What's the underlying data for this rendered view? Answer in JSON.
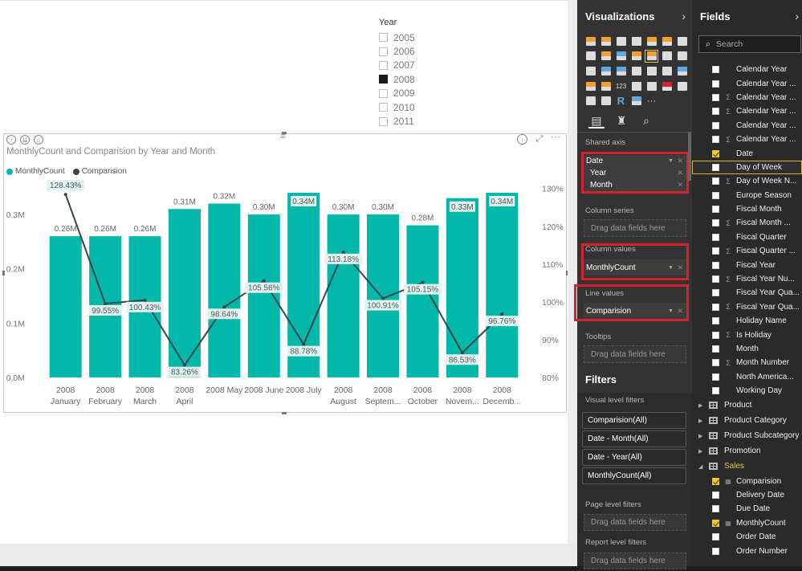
{
  "slicer": {
    "title": "Year",
    "items": [
      {
        "label": "2005",
        "selected": false
      },
      {
        "label": "2006",
        "selected": false
      },
      {
        "label": "2007",
        "selected": false
      },
      {
        "label": "2008",
        "selected": true
      },
      {
        "label": "2009",
        "selected": false
      },
      {
        "label": "2010",
        "selected": false
      },
      {
        "label": "2011",
        "selected": false
      }
    ]
  },
  "visual": {
    "title": "MonthlyCount and Comparision by Year and Month",
    "legend": [
      {
        "label": "MonthlyCount",
        "color": "#01b8aa"
      },
      {
        "label": "Comparision",
        "color": "#374649"
      }
    ]
  },
  "chart_data": {
    "type": "bar",
    "title": "MonthlyCount and Comparision by Year and Month",
    "categories": [
      [
        "2008",
        "January"
      ],
      [
        "2008",
        "February"
      ],
      [
        "2008",
        "March"
      ],
      [
        "2008",
        "April"
      ],
      [
        "2008 May"
      ],
      [
        "2008 June"
      ],
      [
        "2008 July"
      ],
      [
        "2008",
        "August"
      ],
      [
        "2008",
        "Septem..."
      ],
      [
        "2008",
        "October"
      ],
      [
        "2008",
        "Novem..."
      ],
      [
        "2008",
        "Decemb..."
      ]
    ],
    "series": [
      {
        "name": "MonthlyCount",
        "kind": "bar",
        "axis": "left",
        "color": "#01b8aa",
        "values": [
          260000,
          260000,
          260000,
          310000,
          320000,
          300000,
          340000,
          300000,
          300000,
          280000,
          330000,
          340000
        ],
        "labels": [
          "0.26M",
          "0.26M",
          "0.26M",
          "0.31M",
          "0.32M",
          "0.30M",
          "0.34M",
          "0.30M",
          "0.30M",
          "0.28M",
          "0.33M",
          "0.34M"
        ]
      },
      {
        "name": "Comparision",
        "kind": "line",
        "axis": "right",
        "color": "#374649",
        "values": [
          128.43,
          99.55,
          100.43,
          83.26,
          98.64,
          105.56,
          88.78,
          113.18,
          100.91,
          105.15,
          86.53,
          96.76
        ],
        "labels": [
          "128.43%",
          "99.55%",
          "100.43%",
          "83.26%",
          "98.64%",
          "105.56%",
          "88.78%",
          "113.18%",
          "100.91%",
          "105.15%",
          "86.53%",
          "96.76%"
        ]
      }
    ],
    "y_left": {
      "ticks": [
        "0.0M",
        "0.1M",
        "0.2M",
        "0.3M"
      ],
      "tick_values": [
        0,
        100000,
        200000,
        300000
      ],
      "ylim": [
        0,
        340000
      ]
    },
    "y_right": {
      "ticks": [
        "80%",
        "90%",
        "100%",
        "110%",
        "120%",
        "130%"
      ],
      "tick_values": [
        80,
        90,
        100,
        110,
        120,
        130
      ],
      "ylim": [
        80,
        131
      ]
    },
    "grid": false,
    "legend_position": "top-left"
  },
  "viz_pane": {
    "title": "Visualizations",
    "icon_colors": [
      "#f0a030",
      "#f0a030",
      "#dcdcdc",
      "#dcdcdc",
      "#f0a030",
      "#f0a030",
      "#dcdcdc",
      "#dcdcdc",
      "#f0a030",
      "#5fa8e0",
      "#f0a030",
      "#f0a030",
      "#dcdcdc",
      "#dcdcdc",
      "#dcdcdc",
      "#5fa8e0",
      "#5fa8e0",
      "#dcdcdc",
      "#dcdcdc",
      "#dcdcdc",
      "#5fa8e0",
      "#f0a030",
      "#f0a030",
      "#dcdcdc",
      "#dcdcdc",
      "#dcdcdc",
      "#d6232b",
      "#dcdcdc",
      "#dcdcdc",
      "#dcdcdc",
      "#5fa8e0",
      "#5fa8e0",
      "#dcdcdc"
    ],
    "icon_labels": {
      "kpi": "123",
      "r": "R",
      "more": "···"
    },
    "shared_axis": {
      "label": "Shared axis",
      "field": "Date",
      "children": [
        "Year",
        "Month"
      ]
    },
    "column_series": {
      "label": "Column series",
      "placeholder": "Drag data fields here"
    },
    "column_values": {
      "label": "Column values",
      "field": "MonthlyCount"
    },
    "line_values": {
      "label": "Line values",
      "field": "Comparision"
    },
    "tooltips": {
      "label": "Tooltips",
      "placeholder": "Drag data fields here"
    }
  },
  "filters": {
    "title": "Filters",
    "visual_label": "Visual level filters",
    "visual_items": [
      "Comparision(All)",
      "Date - Month(All)",
      "Date - Year(All)",
      "MonthlyCount(All)"
    ],
    "page_label": "Page level filters",
    "page_placeholder": "Drag data fields here",
    "report_label": "Report level filters",
    "report_placeholder": "Drag data fields here"
  },
  "fields_pane": {
    "title": "Fields",
    "search_placeholder": "Search",
    "date_fields": [
      {
        "label": "Calendar Year",
        "sigma": false,
        "checked": false
      },
      {
        "label": "Calendar Year ...",
        "sigma": false,
        "checked": false
      },
      {
        "label": "Calendar Year ...",
        "sigma": true,
        "checked": false
      },
      {
        "label": "Calendar Year ...",
        "sigma": true,
        "checked": false
      },
      {
        "label": "Calendar Year ...",
        "sigma": false,
        "checked": false
      },
      {
        "label": "Calendar Year ...",
        "sigma": true,
        "checked": false
      },
      {
        "label": "Date",
        "sigma": false,
        "checked": true
      },
      {
        "label": "Day of Week",
        "sigma": false,
        "checked": false,
        "highlight": true
      },
      {
        "label": "Day of Week N...",
        "sigma": true,
        "checked": false
      },
      {
        "label": "Europe Season",
        "sigma": false,
        "checked": false
      },
      {
        "label": "Fiscal Month",
        "sigma": false,
        "checked": false
      },
      {
        "label": "Fiscal Month ...",
        "sigma": true,
        "checked": false
      },
      {
        "label": "Fiscal Quarter",
        "sigma": false,
        "checked": false
      },
      {
        "label": "Fiscal Quarter ...",
        "sigma": true,
        "checked": false
      },
      {
        "label": "Fiscal Year",
        "sigma": false,
        "checked": false
      },
      {
        "label": "Fiscal Year Nu...",
        "sigma": true,
        "checked": false
      },
      {
        "label": "Fiscal Year Qua...",
        "sigma": false,
        "checked": false
      },
      {
        "label": "Fiscal Year Qua...",
        "sigma": true,
        "checked": false
      },
      {
        "label": "Holiday Name",
        "sigma": false,
        "checked": false
      },
      {
        "label": "Is Holiday",
        "sigma": true,
        "checked": false
      },
      {
        "label": "Month",
        "sigma": false,
        "checked": false
      },
      {
        "label": "Month Number",
        "sigma": true,
        "checked": false
      },
      {
        "label": "North America...",
        "sigma": false,
        "checked": false
      },
      {
        "label": "Working Day",
        "sigma": false,
        "checked": false
      }
    ],
    "tables": [
      {
        "label": "Product",
        "open": false
      },
      {
        "label": "Product Category",
        "open": false
      },
      {
        "label": "Product Subcategory",
        "open": false
      },
      {
        "label": "Promotion",
        "open": false
      },
      {
        "label": "Sales",
        "open": true
      }
    ],
    "sales_fields": [
      {
        "label": "Comparision",
        "calc": true,
        "checked": true
      },
      {
        "label": "Delivery Date",
        "calc": false,
        "checked": false
      },
      {
        "label": "Due Date",
        "calc": false,
        "checked": false
      },
      {
        "label": "MonthlyCount",
        "calc": true,
        "checked": true
      },
      {
        "label": "Order Date",
        "calc": false,
        "checked": false
      },
      {
        "label": "Order Number",
        "calc": false,
        "checked": false
      }
    ]
  }
}
